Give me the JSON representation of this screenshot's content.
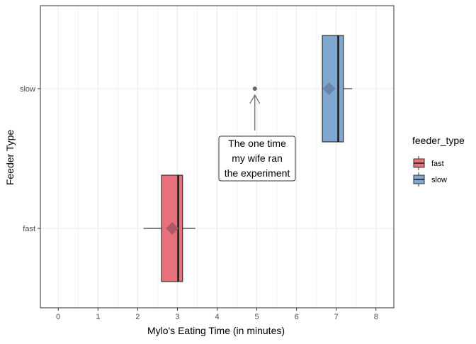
{
  "chart_data": {
    "type": "boxplot",
    "orientation": "horizontal",
    "xlabel": "Mylo's Eating Time (in minutes)",
    "ylabel": "Feeder Type",
    "xlim": [
      -0.45,
      8.45
    ],
    "x_ticks": [
      0,
      1,
      2,
      3,
      4,
      5,
      6,
      7,
      8
    ],
    "categories": [
      "fast",
      "slow"
    ],
    "grid": true,
    "legend": {
      "title": "feeder_type",
      "position": "right",
      "entries": [
        "fast",
        "slow"
      ]
    },
    "colors": {
      "fast": "#e8707c",
      "slow": "#7fa7d0",
      "mean_fast": "#b05868",
      "mean_slow": "#6a85ab",
      "outlier": "#666666",
      "panel_border": "#333333",
      "gridline": "#ebebeb"
    },
    "series": [
      {
        "name": "fast",
        "whisker_low": 2.15,
        "q1": 2.6,
        "median": 3.02,
        "q3": 3.13,
        "whisker_high": 3.45,
        "mean": 2.87,
        "outliers": []
      },
      {
        "name": "slow",
        "whisker_low": 6.65,
        "q1": 6.65,
        "median": 7.05,
        "q3": 7.18,
        "whisker_high": 7.4,
        "mean": 6.82,
        "outliers": [
          4.95
        ]
      }
    ],
    "annotation": {
      "lines": [
        "The one time",
        "my wife ran",
        "the experiment"
      ],
      "arrow_x": 4.95,
      "arrow_target": "slow outlier"
    }
  }
}
